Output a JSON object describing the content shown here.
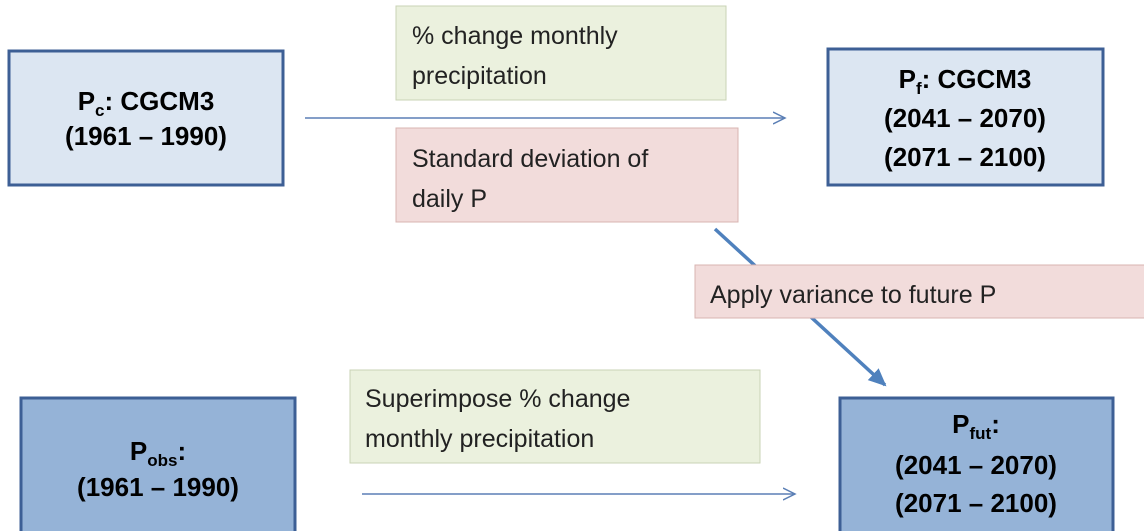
{
  "nodes": [
    {
      "symbol": "P",
      "sub": "c",
      "rest": ": CGCM3",
      "lines": [
        "(1961 – 1990)"
      ]
    },
    {
      "symbol": "P",
      "sub": "f",
      "rest": ": CGCM3",
      "lines": [
        "(2041 – 2070)",
        "(2071 – 2100)"
      ]
    },
    {
      "symbol": "P",
      "sub": "obs",
      "rest": ":",
      "lines": [
        "(1961 – 1990)"
      ]
    },
    {
      "symbol": "P",
      "sub": "fut",
      "rest": ":",
      "lines": [
        "(2041 – 2070)",
        "(2071 – 2100)"
      ]
    }
  ],
  "notes": [
    {
      "lines": [
        "% change monthly",
        "precipitation"
      ]
    },
    {
      "lines": [
        "Standard deviation of",
        "daily P"
      ]
    },
    {
      "lines": [
        "Apply variance to future P"
      ]
    },
    {
      "lines": [
        "Superimpose % change",
        "monthly precipitation"
      ]
    }
  ]
}
